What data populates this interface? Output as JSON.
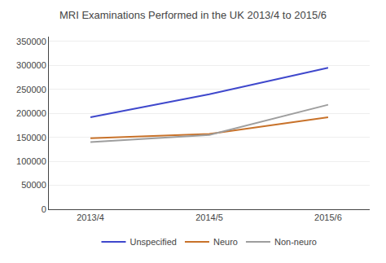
{
  "chart_data": {
    "type": "line",
    "title": "MRI Examinations Performed in the UK 2013/4 to 2015/6",
    "categories": [
      "2013/4",
      "2014/5",
      "2015/6"
    ],
    "series": [
      {
        "name": "Unspecified",
        "color": "#3f48cc",
        "values": [
          192000,
          240000,
          295000
        ]
      },
      {
        "name": "Neuro",
        "color": "#c8722a",
        "values": [
          148000,
          157000,
          192000
        ]
      },
      {
        "name": "Non-neuro",
        "color": "#9e9e9e",
        "values": [
          140000,
          155000,
          218000
        ]
      }
    ],
    "ylim": [
      0,
      360000
    ],
    "yticks": [
      0,
      50000,
      100000,
      150000,
      200000,
      250000,
      300000,
      350000
    ],
    "grid": true,
    "legend": "bottom"
  }
}
